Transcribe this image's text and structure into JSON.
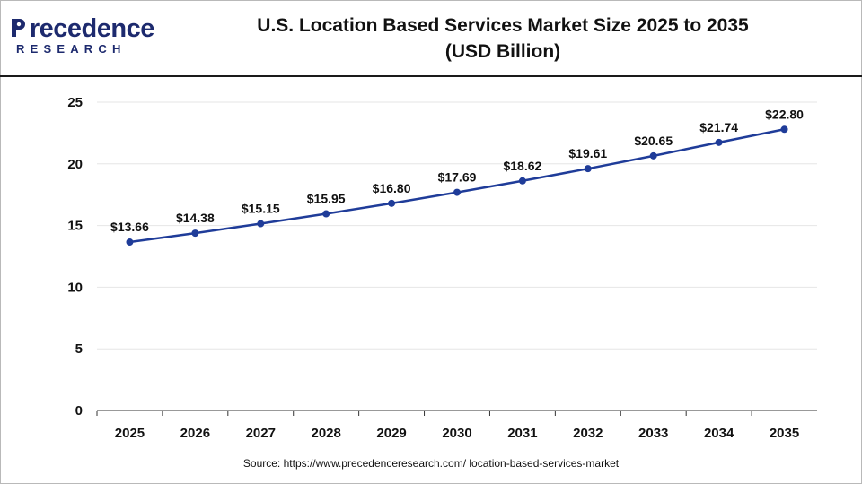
{
  "header": {
    "logo_main": "recedence",
    "logo_initial": "P",
    "logo_sub": "RESEARCH",
    "title_line1": "U.S. Location Based Services Market Size 2025 to 2035",
    "title_line2": "(USD Billion)"
  },
  "source": "Source: https://www.precedenceresearch.com/ location-based-services-market",
  "colors": {
    "line": "#1f3c99",
    "point": "#1f3c99",
    "grid": "#e6e6e6",
    "axis": "#333333",
    "header_rule": "#1a1a1a",
    "logo": "#1d2a6e"
  },
  "chart_data": {
    "type": "line",
    "title": "U.S. Location Based Services Market Size 2025 to 2035 (USD Billion)",
    "xlabel": "",
    "ylabel": "",
    "ylim": [
      0,
      25
    ],
    "yticks": [
      0,
      5,
      10,
      15,
      20,
      25
    ],
    "grid": true,
    "categories": [
      "2025",
      "2026",
      "2027",
      "2028",
      "2029",
      "2030",
      "2031",
      "2032",
      "2033",
      "2034",
      "2035"
    ],
    "values": [
      13.66,
      14.38,
      15.15,
      15.95,
      16.8,
      17.69,
      18.62,
      19.61,
      20.65,
      21.74,
      22.8
    ],
    "data_labels": [
      "$13.66",
      "$14.38",
      "$15.15",
      "$15.95",
      "$16.80",
      "$17.69",
      "$18.62",
      "$19.61",
      "$20.65",
      "$21.74",
      "$22.80"
    ]
  }
}
